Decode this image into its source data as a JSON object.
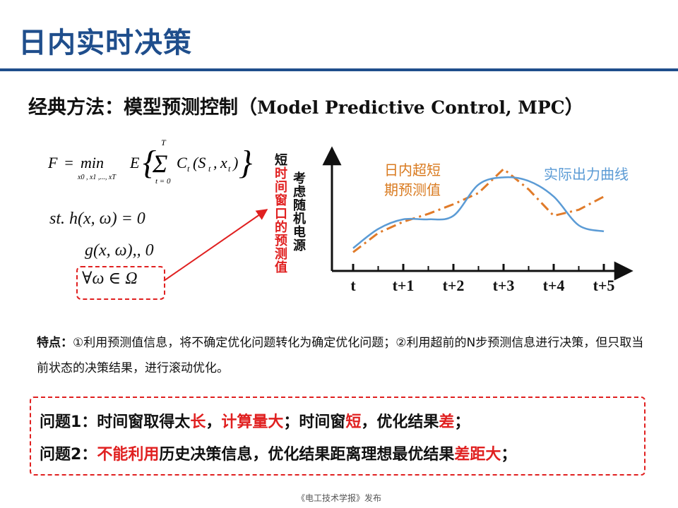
{
  "title": "日内实时决策",
  "subtitle": {
    "cn": "经典方法：模型预测控制（",
    "en": "Model Predictive Control, MPC",
    "close": "）"
  },
  "formula": {
    "main": "F = min E { Σ C_t (S_t , x_t) }",
    "sub_min": "x0 , x1 ,..., xT",
    "sum_top": "T",
    "sum_bottom": "t = 0",
    "st": "st.  h(x, ω) = 0",
    "g": "g(x, ω),, 0",
    "forall": "∀ω ∈ Ω"
  },
  "vertical_label_red": {
    "first": "短",
    "rest": "时间窗口的预测值"
  },
  "vertical_label_black": "考虑随机电源",
  "chart_data": {
    "type": "line",
    "categories": [
      "t",
      "t+1",
      "t+2",
      "t+3",
      "t+4",
      "t+5"
    ],
    "series": [
      {
        "name": "日内超短期预测值",
        "color": "#e07b2a",
        "style": "dash-dot",
        "x": [
          0,
          0.5,
          1,
          1.5,
          2,
          2.5,
          3,
          3.5,
          4,
          4.5,
          5
        ],
        "values": [
          0.78,
          1.58,
          2.05,
          2.38,
          2.78,
          3.25,
          4.25,
          3.4,
          2.3,
          2.55,
          3.1
        ]
      },
      {
        "name": "实际出力曲线",
        "color": "#5b9bd5",
        "style": "solid",
        "x": [
          0,
          0.5,
          1,
          1.5,
          2,
          2.5,
          3,
          3.5,
          4,
          4.5,
          5
        ],
        "values": [
          0.95,
          1.75,
          2.15,
          2.15,
          2.3,
          3.6,
          3.9,
          3.75,
          3.1,
          1.9,
          1.65
        ]
      }
    ],
    "legend_labels": {
      "forecast_line1": "日内超短",
      "forecast_line2": "期预测值",
      "actual": "实际出力曲线"
    }
  },
  "features": {
    "head": "特点：",
    "text": "①利用预测值信息，将不确定优化问题转化为确定优化问题；②利用超前的N步预测信息进行决策，但只取当前状态的决策结果，进行滚动优化。"
  },
  "problem1": {
    "a": "问题1：时间窗取得太",
    "b": "长",
    "c": "，",
    "d": "计算量大",
    "e": "；时间窗",
    "f": "短",
    "g": "，优化结果",
    "h": "差",
    "i": "；"
  },
  "problem2": {
    "a": "问题2：",
    "b": "不能利用",
    "c": "历史决策信息，优化结果距离理想最优结果",
    "d": "差距大",
    "e": "；"
  },
  "footer": "《电工技术学报》发布",
  "colors": {
    "title": "#1f4e8c",
    "accent_red": "#e02020",
    "forecast": "#e07b2a",
    "actual": "#5b9bd5"
  }
}
